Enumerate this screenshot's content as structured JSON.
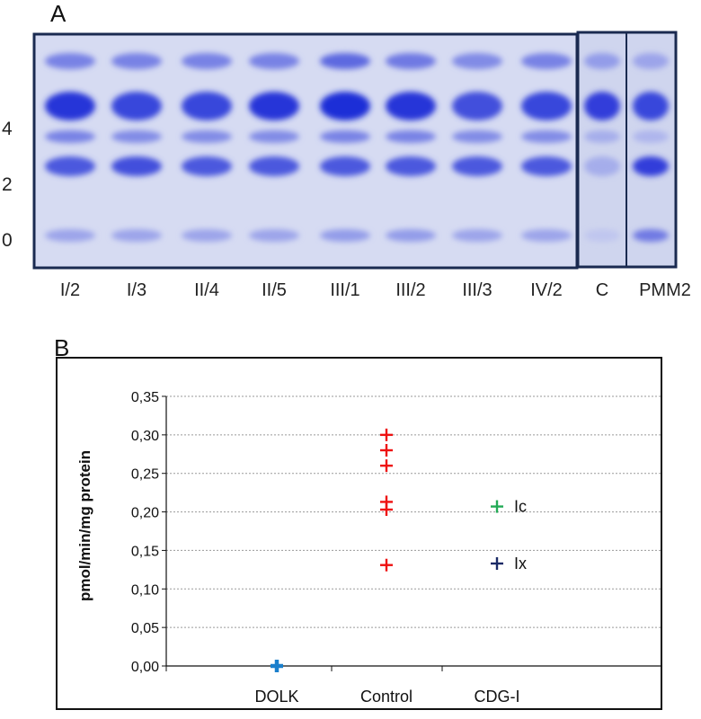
{
  "panel_a": {
    "letter": "A",
    "mw_markers": [
      "4",
      "2",
      "0"
    ],
    "main_lanes": [
      {
        "label": "I/2",
        "bands": [
          0.5,
          0.95,
          0.5,
          0.75,
          0.3
        ]
      },
      {
        "label": "I/3",
        "bands": [
          0.5,
          0.85,
          0.45,
          0.8,
          0.3
        ]
      },
      {
        "label": "II/4",
        "bands": [
          0.5,
          0.85,
          0.45,
          0.75,
          0.3
        ]
      },
      {
        "label": "II/5",
        "bands": [
          0.5,
          0.95,
          0.45,
          0.75,
          0.3
        ]
      },
      {
        "label": "III/1",
        "bands": [
          0.65,
          1.0,
          0.5,
          0.75,
          0.35
        ]
      },
      {
        "label": "III/2",
        "bands": [
          0.55,
          0.95,
          0.5,
          0.75,
          0.35
        ]
      },
      {
        "label": "III/3",
        "bands": [
          0.45,
          0.8,
          0.45,
          0.75,
          0.3
        ]
      },
      {
        "label": "IV/2",
        "bands": [
          0.5,
          0.85,
          0.45,
          0.75,
          0.3
        ]
      }
    ],
    "side_lanes": [
      {
        "label": "C",
        "bands": [
          0.35,
          0.9,
          0.25,
          0.25,
          0.1
        ]
      },
      {
        "label": "PMM2",
        "bands": [
          0.3,
          0.85,
          0.2,
          0.9,
          0.55
        ]
      }
    ]
  },
  "panel_b": {
    "letter": "B",
    "colors": {
      "control": "#ee1111",
      "dolk": "#1a7fcc",
      "ic": "#22aa55",
      "ix": "#1a2a66"
    },
    "chart_data": {
      "type": "scatter",
      "ylabel": "pmol/min/mg  protein",
      "ylim": [
        0,
        0.35
      ],
      "yticks": [
        "0,00",
        "0,05",
        "0,10",
        "0,15",
        "0,20",
        "0,25",
        "0,30",
        "0,35"
      ],
      "categories": [
        "DOLK",
        "Control",
        "CDG-I"
      ],
      "grid": true,
      "points": [
        {
          "category": "DOLK",
          "y": 0.0,
          "color": "dolk"
        },
        {
          "category": "Control",
          "y": 0.3,
          "color": "control"
        },
        {
          "category": "Control",
          "y": 0.28,
          "color": "control"
        },
        {
          "category": "Control",
          "y": 0.26,
          "color": "control"
        },
        {
          "category": "Control",
          "y": 0.213,
          "color": "control"
        },
        {
          "category": "Control",
          "y": 0.203,
          "color": "control"
        },
        {
          "category": "Control",
          "y": 0.131,
          "color": "control"
        },
        {
          "category": "CDG-I",
          "y": 0.207,
          "color": "ic",
          "label": "Ic"
        },
        {
          "category": "CDG-I",
          "y": 0.133,
          "color": "ix",
          "label": "Ix"
        }
      ]
    }
  }
}
